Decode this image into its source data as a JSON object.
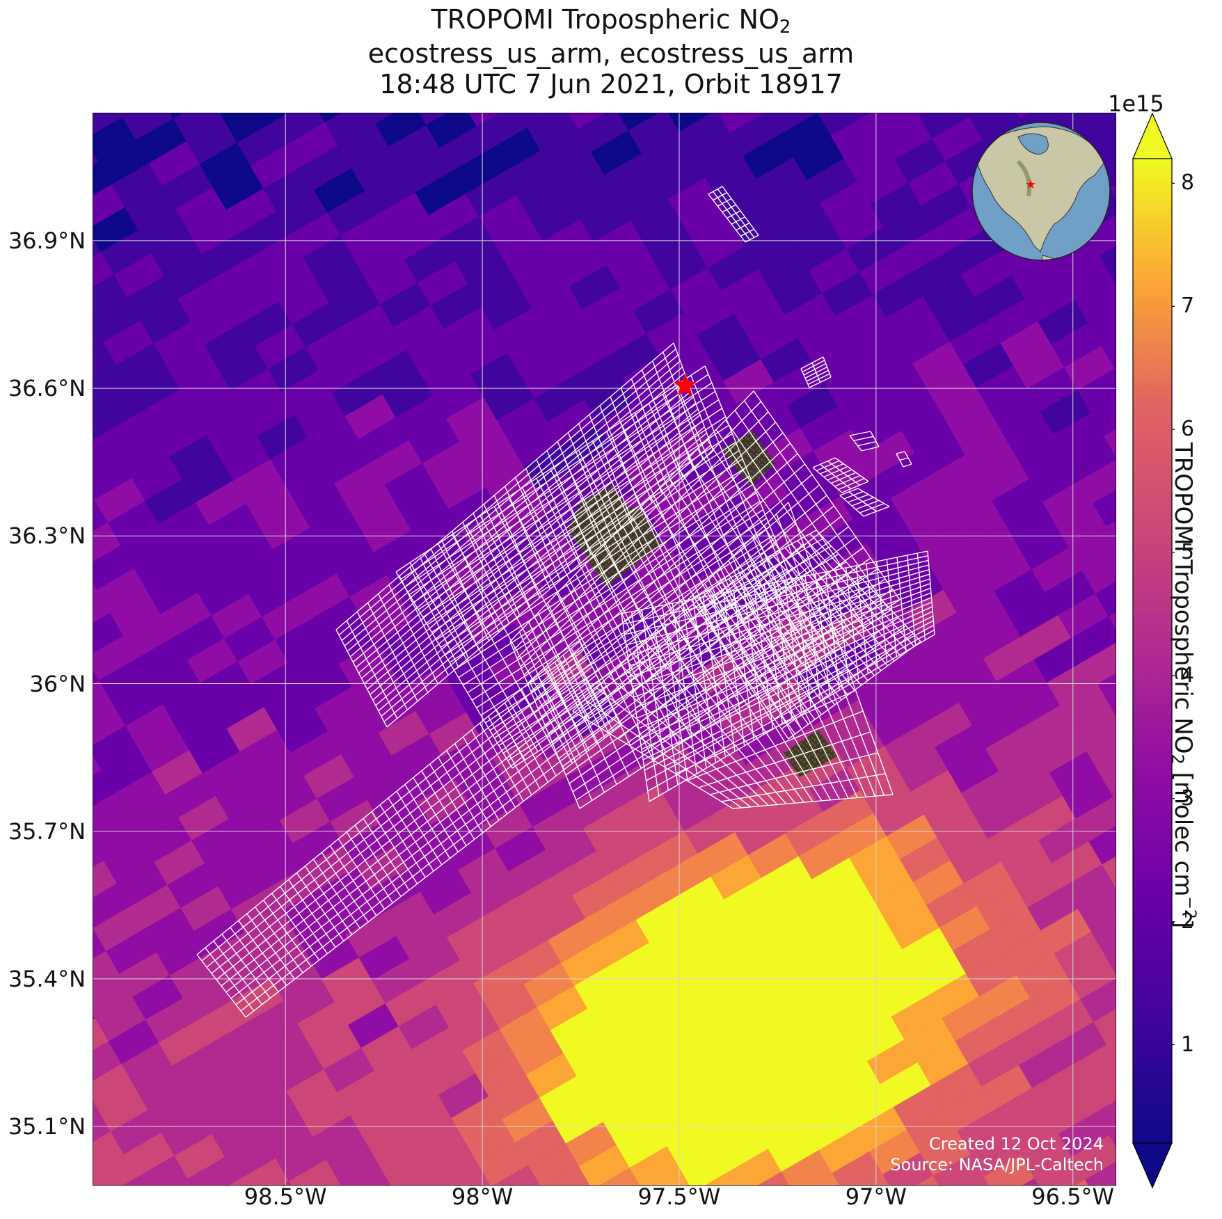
{
  "title": {
    "line1": "TROPOMI Tropospheric NO",
    "line1_sub": "2",
    "line2": "ecostress_us_arm, ecostress_us_arm",
    "line3": "18:48 UTC 7 Jun 2021, Orbit 18917"
  },
  "map": {
    "lon_range": [
      -98.99,
      -96.39
    ],
    "lat_range": [
      34.98,
      37.16
    ],
    "gridlines": true,
    "lat_ticks": [
      {
        "value": 36.9,
        "label": "36.9°N"
      },
      {
        "value": 36.6,
        "label": "36.6°N"
      },
      {
        "value": 36.3,
        "label": "36.3°N"
      },
      {
        "value": 36.0,
        "label": "36°N"
      },
      {
        "value": 35.7,
        "label": "35.7°N"
      },
      {
        "value": 35.4,
        "label": "35.4°N"
      },
      {
        "value": 35.1,
        "label": "35.1°N"
      }
    ],
    "lon_ticks": [
      {
        "value": -98.5,
        "label": "98.5°W"
      },
      {
        "value": -98.0,
        "label": "98°W"
      },
      {
        "value": -97.5,
        "label": "97.5°W"
      },
      {
        "value": -97.0,
        "label": "97°W"
      },
      {
        "value": -96.5,
        "label": "96.5°W"
      }
    ],
    "site_marker": {
      "lon": -97.485,
      "lat": 36.605,
      "symbol": "star",
      "color": "#ff0000"
    },
    "swath_color": "#ffffff",
    "inset_globe": {
      "center_lon": -97.5,
      "center_lat": 36.6,
      "ocean_color": "#6f9ec7",
      "land_color": "#c9c7a6"
    }
  },
  "colorbar": {
    "colormap": "plasma",
    "label": "TROPOMI Tropospheric NO",
    "label_sub": "2",
    "label_units": " [molec cm",
    "label_sup": "−2",
    "label_end": "]",
    "multiplier": "1e15",
    "range": [
      0.2,
      8.2
    ],
    "extend": "both",
    "ticks": [
      {
        "value": 1,
        "label": "1"
      },
      {
        "value": 2,
        "label": "2"
      },
      {
        "value": 3,
        "label": "3"
      },
      {
        "value": 4,
        "label": "4"
      },
      {
        "value": 5,
        "label": "5"
      },
      {
        "value": 6,
        "label": "6"
      },
      {
        "value": 7,
        "label": "7"
      },
      {
        "value": 8,
        "label": "8"
      }
    ]
  },
  "credits": {
    "created": "Created 12 Oct 2024",
    "source": "Source: NASA/JPL-Caltech"
  }
}
